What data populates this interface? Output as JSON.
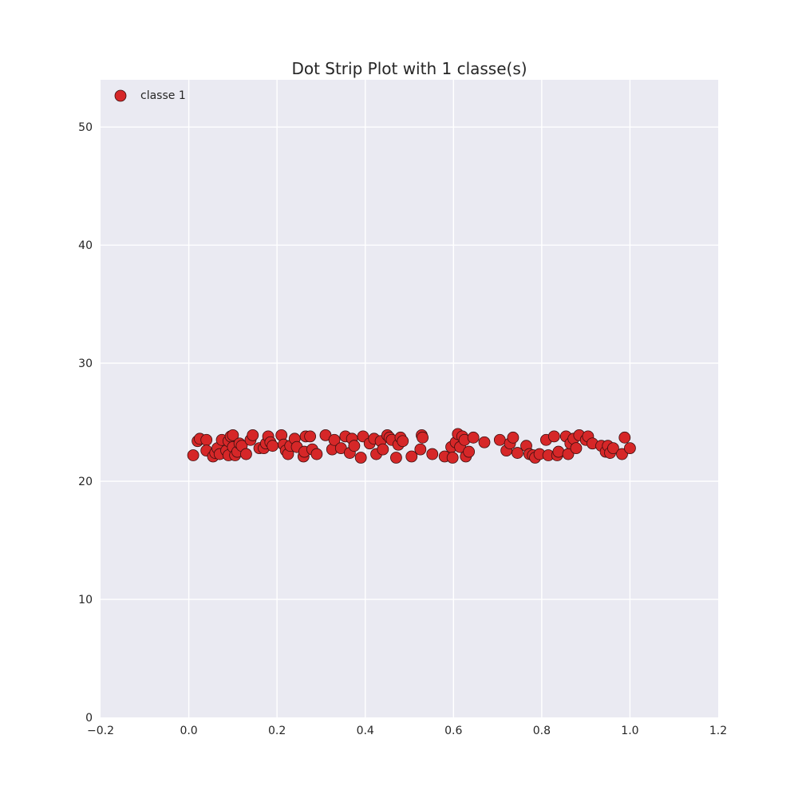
{
  "chart_data": {
    "type": "scatter",
    "title": "Dot Strip Plot with 1 classe(s)",
    "xlabel": "",
    "ylabel": "",
    "xlim": [
      -0.2,
      1.2
    ],
    "ylim": [
      0,
      54
    ],
    "xticks": [
      -0.2,
      0.0,
      0.2,
      0.4,
      0.6,
      0.8,
      1.0,
      1.2
    ],
    "xtick_labels": [
      "−0.2",
      "0.0",
      "0.2",
      "0.4",
      "0.6",
      "0.8",
      "1.0",
      "1.2"
    ],
    "yticks": [
      0,
      10,
      20,
      30,
      40,
      50
    ],
    "ytick_labels": [
      "0",
      "10",
      "20",
      "30",
      "40",
      "50"
    ],
    "grid": true,
    "background_color": "#eaeaf2",
    "legend_position": "top-left",
    "series": [
      {
        "name": "classe 1",
        "color": "#d62728",
        "points": [
          [
            0.01,
            22.2
          ],
          [
            0.02,
            23.4
          ],
          [
            0.025,
            23.6
          ],
          [
            0.04,
            23.5
          ],
          [
            0.04,
            22.6
          ],
          [
            0.055,
            22.1
          ],
          [
            0.06,
            22.4
          ],
          [
            0.065,
            22.8
          ],
          [
            0.07,
            22.3
          ],
          [
            0.075,
            23.5
          ],
          [
            0.085,
            22.6
          ],
          [
            0.09,
            22.2
          ],
          [
            0.09,
            23.4
          ],
          [
            0.095,
            23.8
          ],
          [
            0.1,
            23.9
          ],
          [
            0.1,
            22.9
          ],
          [
            0.105,
            22.2
          ],
          [
            0.11,
            22.5
          ],
          [
            0.115,
            23.2
          ],
          [
            0.12,
            23.0
          ],
          [
            0.13,
            22.3
          ],
          [
            0.14,
            23.5
          ],
          [
            0.145,
            23.9
          ],
          [
            0.16,
            22.8
          ],
          [
            0.17,
            22.8
          ],
          [
            0.175,
            23.2
          ],
          [
            0.18,
            23.8
          ],
          [
            0.185,
            23.3
          ],
          [
            0.19,
            23.0
          ],
          [
            0.21,
            23.9
          ],
          [
            0.215,
            23.1
          ],
          [
            0.22,
            22.6
          ],
          [
            0.225,
            22.3
          ],
          [
            0.23,
            23.0
          ],
          [
            0.24,
            23.6
          ],
          [
            0.245,
            22.9
          ],
          [
            0.26,
            22.1
          ],
          [
            0.262,
            22.5
          ],
          [
            0.265,
            23.8
          ],
          [
            0.275,
            23.8
          ],
          [
            0.28,
            22.7
          ],
          [
            0.29,
            22.3
          ],
          [
            0.31,
            23.9
          ],
          [
            0.325,
            22.7
          ],
          [
            0.33,
            23.5
          ],
          [
            0.345,
            22.8
          ],
          [
            0.355,
            23.8
          ],
          [
            0.365,
            22.4
          ],
          [
            0.37,
            23.6
          ],
          [
            0.375,
            23.0
          ],
          [
            0.39,
            22.0
          ],
          [
            0.395,
            23.8
          ],
          [
            0.41,
            23.2
          ],
          [
            0.42,
            23.6
          ],
          [
            0.425,
            22.3
          ],
          [
            0.435,
            23.4
          ],
          [
            0.44,
            22.7
          ],
          [
            0.45,
            23.9
          ],
          [
            0.455,
            23.7
          ],
          [
            0.46,
            23.5
          ],
          [
            0.47,
            22.0
          ],
          [
            0.475,
            23.1
          ],
          [
            0.48,
            23.7
          ],
          [
            0.485,
            23.4
          ],
          [
            0.505,
            22.1
          ],
          [
            0.525,
            22.7
          ],
          [
            0.528,
            23.9
          ],
          [
            0.53,
            23.7
          ],
          [
            0.552,
            22.3
          ],
          [
            0.58,
            22.1
          ],
          [
            0.595,
            22.9
          ],
          [
            0.598,
            22.0
          ],
          [
            0.605,
            23.3
          ],
          [
            0.61,
            24.0
          ],
          [
            0.615,
            22.9
          ],
          [
            0.62,
            23.8
          ],
          [
            0.625,
            23.5
          ],
          [
            0.628,
            22.1
          ],
          [
            0.635,
            22.5
          ],
          [
            0.645,
            23.7
          ],
          [
            0.67,
            23.3
          ],
          [
            0.705,
            23.5
          ],
          [
            0.72,
            22.6
          ],
          [
            0.728,
            23.2
          ],
          [
            0.735,
            23.7
          ],
          [
            0.745,
            22.4
          ],
          [
            0.765,
            23.0
          ],
          [
            0.772,
            22.3
          ],
          [
            0.78,
            22.2
          ],
          [
            0.785,
            22.0
          ],
          [
            0.795,
            22.3
          ],
          [
            0.81,
            23.5
          ],
          [
            0.815,
            22.2
          ],
          [
            0.828,
            23.8
          ],
          [
            0.835,
            22.2
          ],
          [
            0.838,
            22.5
          ],
          [
            0.855,
            23.8
          ],
          [
            0.86,
            22.3
          ],
          [
            0.865,
            23.2
          ],
          [
            0.872,
            23.6
          ],
          [
            0.878,
            22.8
          ],
          [
            0.885,
            23.9
          ],
          [
            0.9,
            23.5
          ],
          [
            0.905,
            23.8
          ],
          [
            0.915,
            23.2
          ],
          [
            0.935,
            23.0
          ],
          [
            0.945,
            22.5
          ],
          [
            0.95,
            23.0
          ],
          [
            0.955,
            22.4
          ],
          [
            0.962,
            22.8
          ],
          [
            0.982,
            22.3
          ],
          [
            0.988,
            23.7
          ],
          [
            1.0,
            22.8
          ]
        ]
      }
    ]
  }
}
